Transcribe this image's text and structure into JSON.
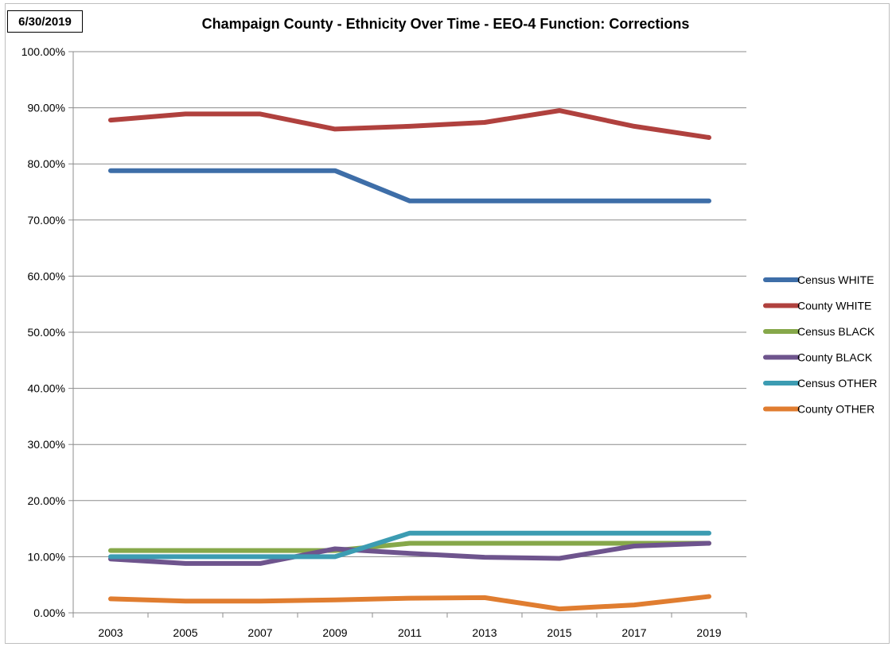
{
  "date_label": "6/30/2019",
  "chart_data": {
    "type": "line",
    "title": "Champaign County - Ethnicity Over Time - EEO-4 Function: Corrections",
    "xlabel": "",
    "ylabel": "",
    "x": [
      "2003",
      "2005",
      "2007",
      "2009",
      "2011",
      "2013",
      "2015",
      "2017",
      "2019"
    ],
    "ylim": [
      0,
      100
    ],
    "y_ticks": [
      "0.00%",
      "10.00%",
      "20.00%",
      "30.00%",
      "40.00%",
      "50.00%",
      "60.00%",
      "70.00%",
      "80.00%",
      "90.00%",
      "100.00%"
    ],
    "grid": true,
    "legend_position": "right",
    "series": [
      {
        "name": "Census WHITE",
        "color": "#3e6ea8",
        "values": [
          78.8,
          78.8,
          78.8,
          78.8,
          73.4,
          73.4,
          73.4,
          73.4,
          73.4
        ]
      },
      {
        "name": "County WHITE",
        "color": "#b0413e",
        "values": [
          87.8,
          88.9,
          88.9,
          86.2,
          86.7,
          87.4,
          89.5,
          86.7,
          84.7
        ]
      },
      {
        "name": "Census BLACK",
        "color": "#86a84a",
        "values": [
          11.1,
          11.1,
          11.1,
          11.1,
          12.4,
          12.4,
          12.4,
          12.4,
          12.4
        ]
      },
      {
        "name": "County BLACK",
        "color": "#6e548d",
        "values": [
          9.6,
          8.8,
          8.8,
          11.4,
          10.6,
          9.9,
          9.7,
          11.9,
          12.4
        ]
      },
      {
        "name": "Census OTHER",
        "color": "#3c9cb2",
        "values": [
          10.0,
          10.0,
          10.0,
          10.0,
          14.2,
          14.2,
          14.2,
          14.2,
          14.2
        ]
      },
      {
        "name": "County OTHER",
        "color": "#e07d30",
        "values": [
          2.5,
          2.1,
          2.1,
          2.3,
          2.6,
          2.7,
          0.7,
          1.4,
          2.9
        ]
      }
    ]
  }
}
